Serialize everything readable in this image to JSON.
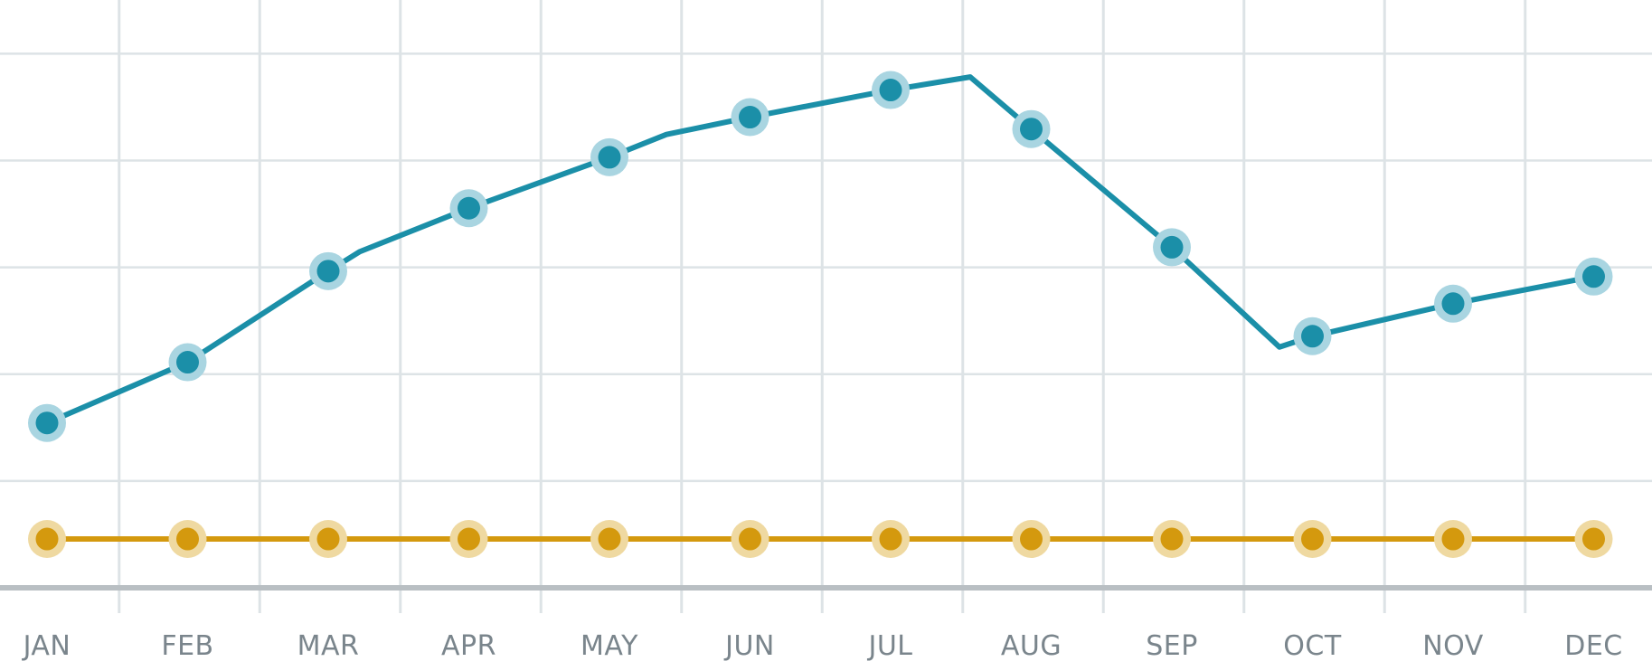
{
  "chart_data": {
    "type": "line",
    "categories": [
      "JAN",
      "FEB",
      "MAR",
      "APR",
      "MAY",
      "JUN",
      "JUL",
      "AUG",
      "SEP",
      "OCT",
      "NOV",
      "DEC"
    ],
    "series": [
      {
        "values": [
          6.0,
          11.6,
          20.0,
          25.8,
          30.5,
          34.2,
          36.7,
          33.1,
          22.2,
          14.0,
          17.0,
          19.5
        ],
        "color": "#1b8fa8",
        "halo_color": "#a9d5e1"
      },
      {
        "values": [
          -4.7,
          -4.7,
          -4.7,
          -4.7,
          -4.7,
          -4.7,
          -4.7,
          -4.7,
          -4.7,
          -4.7,
          -4.7,
          -4.7
        ],
        "color": "#d4990e",
        "halo_color": "#efd9a1"
      }
    ],
    "ylim": [
      -9.2,
      45
    ],
    "grid": true,
    "legend": "none",
    "colors": {
      "grid": "#dde3e6",
      "axis": "#b9bfc3",
      "tick_label": "#7a858c"
    }
  }
}
